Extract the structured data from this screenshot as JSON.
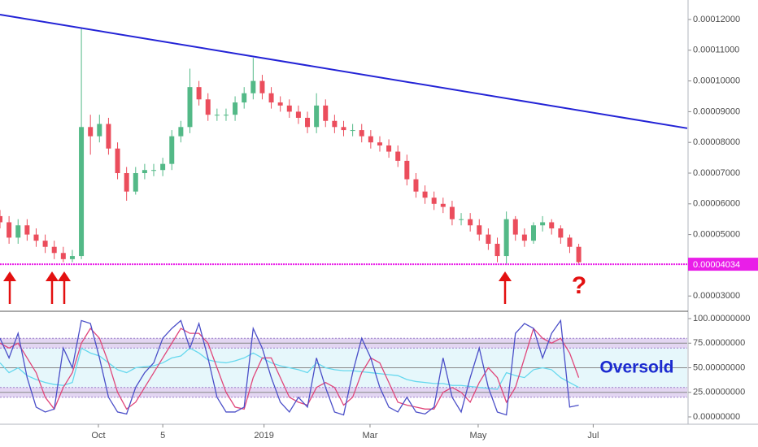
{
  "chart_data": [
    {
      "type": "candlestick",
      "x": [
        0,
        5,
        10,
        15,
        20,
        25,
        30,
        35,
        40,
        45,
        50,
        55,
        60,
        65,
        70,
        75,
        80,
        85,
        90,
        95,
        100,
        105,
        110,
        115,
        120,
        125,
        130,
        135,
        140,
        145,
        150,
        155,
        160,
        165,
        170,
        175,
        180,
        185,
        190,
        195,
        200,
        205,
        210,
        215,
        220,
        225,
        230,
        235,
        240,
        245,
        250,
        255,
        260,
        265,
        270,
        275,
        280,
        285,
        290,
        295,
        300,
        305,
        310,
        315,
        320
      ],
      "open": [
        5.6e-05,
        5.4e-05,
        4.9e-05,
        5.3e-05,
        5e-05,
        4.8e-05,
        4.6e-05,
        4.4e-05,
        4.2e-05,
        4.3e-05,
        8.5e-05,
        8.2e-05,
        8.6e-05,
        7.8e-05,
        7e-05,
        6.4e-05,
        7e-05,
        7.1e-05,
        7.1e-05,
        7.3e-05,
        8.2e-05,
        8.5e-05,
        9.8e-05,
        9.4e-05,
        8.9e-05,
        8.9e-05,
        8.9e-05,
        9.3e-05,
        9.6e-05,
        0.0001,
        9.6e-05,
        9.3e-05,
        9.2e-05,
        9e-05,
        8.8e-05,
        8.5e-05,
        9.2e-05,
        8.7e-05,
        8.5e-05,
        8.4e-05,
        8.4e-05,
        8.2e-05,
        8e-05,
        7.9e-05,
        7.7e-05,
        7.4e-05,
        6.8e-05,
        6.4e-05,
        6.2e-05,
        6e-05,
        5.9e-05,
        5.5e-05,
        5.5e-05,
        5.3e-05,
        5e-05,
        4.7e-05,
        4.3e-05,
        5.5e-05,
        5e-05,
        4.8e-05,
        5.3e-05,
        5.4e-05,
        5.2e-05,
        4.9e-05,
        4.6e-05
      ],
      "high": [
        5.8e-05,
        5.6e-05,
        5.5e-05,
        5.5e-05,
        5.2e-05,
        5e-05,
        4.8e-05,
        4.6e-05,
        4.5e-05,
        0.000117,
        8.9e-05,
        8.9e-05,
        8.8e-05,
        8e-05,
        7.2e-05,
        7.2e-05,
        7.3e-05,
        7.3e-05,
        7.5e-05,
        8.4e-05,
        8.7e-05,
        0.000104,
        0.0001,
        9.6e-05,
        9.1e-05,
        9.1e-05,
        9.5e-05,
        9.8e-05,
        0.0001075,
        0.000102,
        9.8e-05,
        9.5e-05,
        9.4e-05,
        9.2e-05,
        9e-05,
        9.6e-05,
        9.4e-05,
        8.9e-05,
        8.7e-05,
        8.6e-05,
        8.6e-05,
        8.4e-05,
        8.2e-05,
        8.1e-05,
        7.9e-05,
        7.6e-05,
        7e-05,
        6.6e-05,
        6.4e-05,
        6.2e-05,
        6.1e-05,
        5.7e-05,
        5.7e-05,
        5.5e-05,
        5.2e-05,
        4.9e-05,
        5.75e-05,
        5.6e-05,
        5.2e-05,
        5.4e-05,
        5.6e-05,
        5.5e-05,
        5.3e-05,
        5e-05,
        4.7e-05
      ],
      "low": [
        5.2e-05,
        4.7e-05,
        4.7e-05,
        4.8e-05,
        4.6e-05,
        4.4e-05,
        4.2e-05,
        4.1e-05,
        4.1e-05,
        4.2e-05,
        7.6e-05,
        8e-05,
        7.6e-05,
        6.8e-05,
        6.1e-05,
        6.3e-05,
        6.8e-05,
        6.9e-05,
        6.9e-05,
        7.1e-05,
        8e-05,
        8.3e-05,
        9.2e-05,
        8.7e-05,
        8.7e-05,
        8.7e-05,
        8.7e-05,
        9.1e-05,
        9.4e-05,
        9.4e-05,
        9.1e-05,
        9e-05,
        8.8e-05,
        8.6e-05,
        8.3e-05,
        8.3e-05,
        8.5e-05,
        8.3e-05,
        8.2e-05,
        8.2e-05,
        8e-05,
        7.8e-05,
        7.7e-05,
        7.5e-05,
        7.2e-05,
        6.6e-05,
        6.2e-05,
        6e-05,
        5.8e-05,
        5.7e-05,
        5.3e-05,
        5.3e-05,
        5.1e-05,
        4.8e-05,
        4.5e-05,
        4.1e-05,
        4.03e-05,
        4.8e-05,
        4.6e-05,
        4.7e-05,
        5.1e-05,
        5e-05,
        4.7e-05,
        4.4e-05,
        4.04e-05
      ],
      "close": [
        5.4e-05,
        4.9e-05,
        5.3e-05,
        5e-05,
        4.8e-05,
        4.6e-05,
        4.4e-05,
        4.2e-05,
        4.3e-05,
        8.5e-05,
        8.2e-05,
        8.6e-05,
        7.8e-05,
        7e-05,
        6.4e-05,
        7e-05,
        7.1e-05,
        7.1e-05,
        7.3e-05,
        8.2e-05,
        8.5e-05,
        9.8e-05,
        9.4e-05,
        8.9e-05,
        8.9e-05,
        8.9e-05,
        9.3e-05,
        9.6e-05,
        0.0001,
        9.6e-05,
        9.3e-05,
        9.2e-05,
        9e-05,
        8.8e-05,
        8.5e-05,
        9.2e-05,
        8.7e-05,
        8.5e-05,
        8.4e-05,
        8.4e-05,
        8.2e-05,
        8e-05,
        7.9e-05,
        7.7e-05,
        7.4e-05,
        6.8e-05,
        6.4e-05,
        6.2e-05,
        6e-05,
        5.9e-05,
        5.5e-05,
        5.5e-05,
        5.3e-05,
        5e-05,
        4.7e-05,
        4.3e-05,
        5.5e-05,
        5e-05,
        4.8e-05,
        5.3e-05,
        5.4e-05,
        5.2e-05,
        4.9e-05,
        4.6e-05,
        4.1e-05
      ],
      "up_color": "#53b987",
      "down_color": "#eb4d5c",
      "xlim": [
        0,
        380
      ],
      "ylim": [
        2.582e-05,
        0.00012635
      ],
      "yticks": [
        {
          "value": 3e-05,
          "label": "0.00003000"
        },
        {
          "value": 5e-05,
          "label": "0.00005000"
        },
        {
          "value": 6e-05,
          "label": "0.00006000"
        },
        {
          "value": 7e-05,
          "label": "0.00007000"
        },
        {
          "value": 8e-05,
          "label": "0.00008000"
        },
        {
          "value": 9e-05,
          "label": "0.00009000"
        },
        {
          "value": 0.0001,
          "label": "0.00010000"
        },
        {
          "value": 0.00011,
          "label": "0.00011000"
        },
        {
          "value": 0.00012,
          "label": "0.00012000"
        }
      ],
      "trendline": {
        "x": [
          0,
          380
        ],
        "values": [
          0.0001216,
          8.46e-05
        ],
        "color": "#2323d6"
      },
      "support": {
        "value": 4.034e-05,
        "value_label": "0.00004034",
        "color": "#e91ee8"
      },
      "annotation": "?"
    },
    {
      "type": "line",
      "x": [
        0,
        5,
        10,
        15,
        20,
        25,
        30,
        35,
        40,
        45,
        50,
        55,
        60,
        65,
        70,
        75,
        80,
        85,
        90,
        95,
        100,
        105,
        110,
        115,
        120,
        125,
        130,
        135,
        140,
        145,
        150,
        155,
        160,
        165,
        170,
        175,
        180,
        185,
        190,
        195,
        200,
        205,
        210,
        215,
        220,
        225,
        230,
        235,
        240,
        245,
        250,
        255,
        260,
        265,
        270,
        275,
        280,
        285,
        290,
        295,
        300,
        305,
        310,
        315,
        320
      ],
      "series": [
        {
          "color": "#66d8ee",
          "values": [
            55,
            45,
            50,
            42,
            38,
            35,
            33,
            32,
            35,
            70,
            65,
            62,
            55,
            48,
            45,
            50,
            51,
            52,
            55,
            60,
            62,
            70,
            65,
            58,
            56,
            55,
            57,
            60,
            65,
            60,
            55,
            52,
            50,
            48,
            45,
            55,
            50,
            48,
            47,
            47,
            46,
            45,
            44,
            43,
            42,
            38,
            36,
            35,
            34,
            34,
            32,
            32,
            31,
            30,
            29,
            28,
            45,
            42,
            40,
            48,
            50,
            48,
            40,
            35,
            30
          ]
        },
        {
          "color": "#e0467a",
          "values": [
            75,
            70,
            75,
            60,
            45,
            20,
            8,
            30,
            45,
            75,
            90,
            80,
            55,
            25,
            8,
            15,
            30,
            45,
            60,
            75,
            90,
            85,
            85,
            75,
            50,
            25,
            10,
            8,
            40,
            60,
            60,
            40,
            20,
            15,
            12,
            30,
            35,
            30,
            12,
            20,
            45,
            60,
            55,
            35,
            15,
            12,
            10,
            8,
            8,
            25,
            30,
            25,
            15,
            35,
            50,
            40,
            15,
            30,
            60,
            90,
            80,
            75,
            80,
            65,
            40
          ]
        },
        {
          "color": "#4a4ec8",
          "values": [
            80,
            60,
            85,
            40,
            10,
            5,
            8,
            70,
            50,
            98,
            95,
            60,
            20,
            5,
            3,
            30,
            45,
            55,
            80,
            90,
            98,
            70,
            95,
            60,
            20,
            5,
            5,
            10,
            90,
            70,
            40,
            15,
            5,
            20,
            10,
            60,
            30,
            5,
            2,
            45,
            80,
            60,
            30,
            10,
            5,
            20,
            5,
            3,
            10,
            60,
            20,
            5,
            40,
            70,
            30,
            5,
            2,
            85,
            95,
            90,
            60,
            85,
            98,
            10,
            12
          ]
        }
      ],
      "xlim": [
        0,
        380
      ],
      "ylim": [
        -5.8,
        105.8
      ],
      "yticks": [
        {
          "value": 0,
          "label": "0.00000000"
        },
        {
          "value": 25,
          "label": "25.00000000"
        },
        {
          "value": 50,
          "label": "50.00000000"
        },
        {
          "value": 75,
          "label": "75.00000000"
        },
        {
          "value": 100,
          "label": "100.00000000"
        }
      ],
      "xticks": [
        {
          "value": 54.4,
          "label": "Oct"
        },
        {
          "value": 90,
          "label": "5"
        },
        {
          "value": 146,
          "label": "2019"
        },
        {
          "value": 204.6,
          "label": "Mar"
        },
        {
          "value": 264.4,
          "label": "May"
        },
        {
          "value": 328,
          "label": "Jul"
        }
      ],
      "bands": [
        [
          20,
          30
        ],
        [
          70,
          80
        ]
      ],
      "annotation": "Oversold"
    }
  ]
}
